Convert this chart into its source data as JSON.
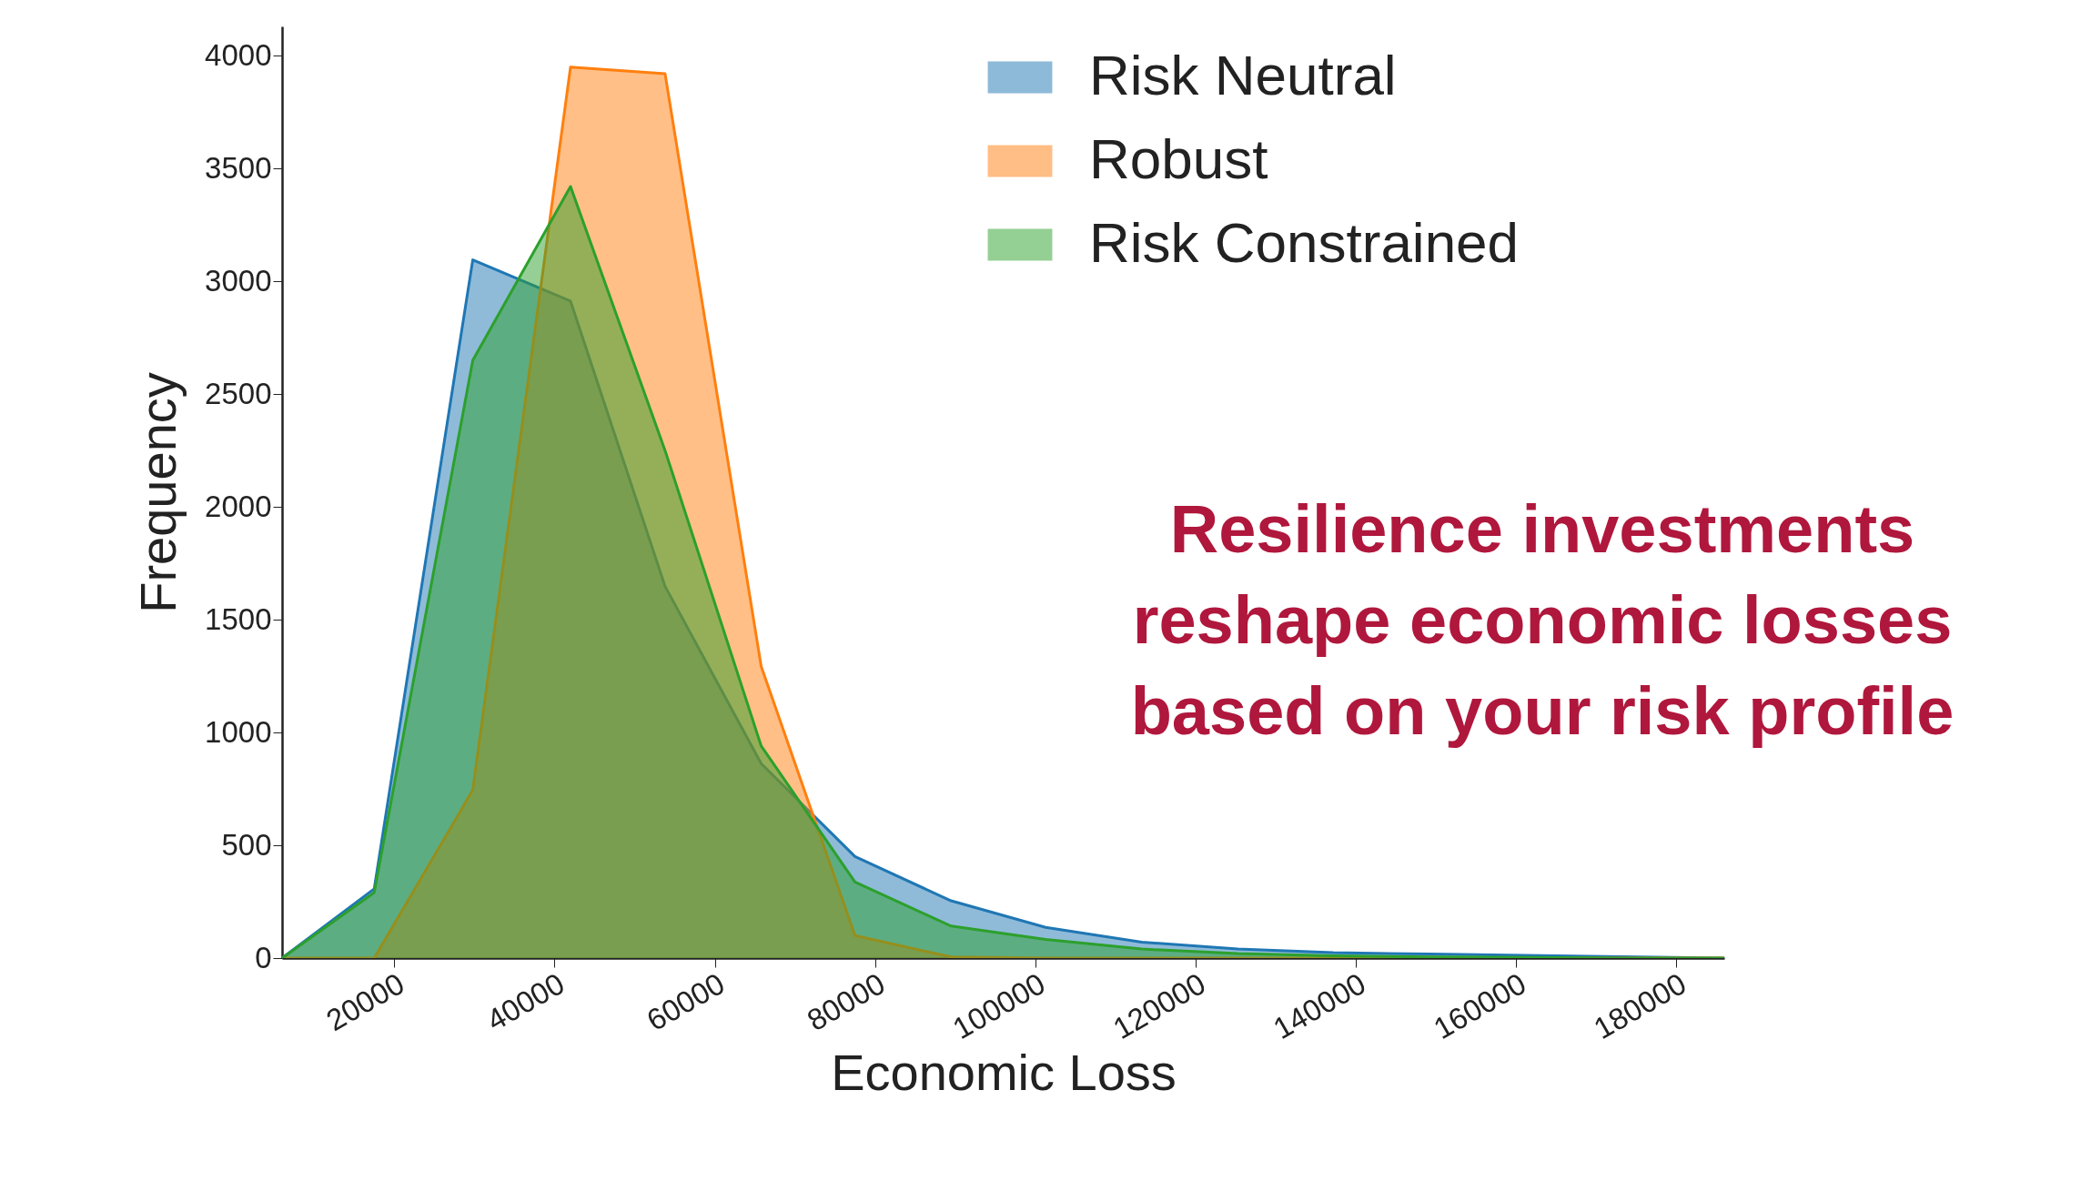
{
  "chart_data": {
    "type": "area",
    "xlabel": "Economic Loss",
    "ylabel": "Frequency",
    "x": [
      6000,
      17500,
      29800,
      42000,
      53800,
      65800,
      77500,
      89500,
      101300,
      113300,
      125300,
      137200,
      149200,
      161100,
      173100,
      186000
    ],
    "series": [
      {
        "name": "Risk Neutral",
        "color": "#1f77b4",
        "values": [
          0,
          307,
          3095,
          2912,
          1648,
          862,
          450,
          254,
          136,
          71,
          40,
          24,
          18,
          12,
          6,
          0
        ]
      },
      {
        "name": "Robust",
        "color": "#ff7f0e",
        "values": [
          0,
          0,
          745,
          3950,
          3920,
          1293,
          100,
          5,
          0,
          0,
          0,
          0,
          0,
          0,
          0,
          0
        ]
      },
      {
        "name": "Risk Constrained",
        "color": "#2ca02c",
        "values": [
          0,
          290,
          2650,
          3420,
          2250,
          940,
          337,
          142,
          83,
          40,
          20,
          10,
          5,
          3,
          0,
          0
        ]
      }
    ],
    "xlim": [
      6000,
      186000
    ],
    "xticks": [
      20000,
      40000,
      60000,
      80000,
      100000,
      120000,
      140000,
      160000,
      180000
    ],
    "ylim": [
      0,
      4130
    ],
    "yticks": [
      0,
      500,
      1000,
      1500,
      2000,
      2500,
      3000,
      3500,
      4000
    ],
    "grid": false,
    "legend": "top right",
    "annotations": [
      "Resilience investments\nreshape economic losses\nbased on your risk profile"
    ]
  }
}
